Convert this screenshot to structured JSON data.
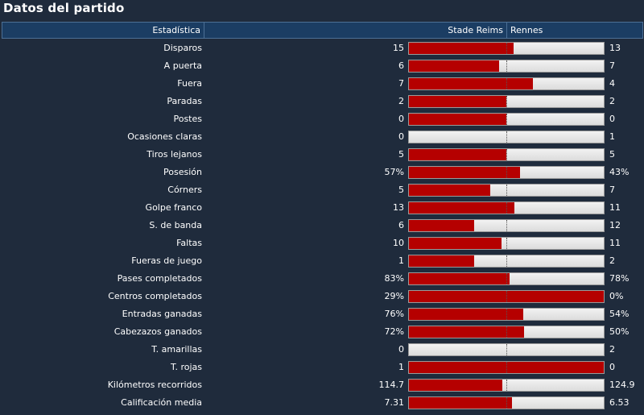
{
  "title": "Datos del partido",
  "header": {
    "stat_label": "Estadística",
    "home_team": "Stade Reims",
    "away_team": "Rennes"
  },
  "colors": {
    "home_fill": "#b50000",
    "away_fill": "#e6e6e6",
    "header_bg": "#1b3d63",
    "page_bg": "#1f2b3c"
  },
  "stats": [
    {
      "label": "Disparos",
      "home": "15",
      "away": "13",
      "home_share": 0.536
    },
    {
      "label": "A puerta",
      "home": "6",
      "away": "7",
      "home_share": 0.462
    },
    {
      "label": "Fuera",
      "home": "7",
      "away": "4",
      "home_share": 0.636
    },
    {
      "label": "Paradas",
      "home": "2",
      "away": "2",
      "home_share": 0.5
    },
    {
      "label": "Postes",
      "home": "0",
      "away": "0",
      "home_share": 0.5
    },
    {
      "label": "Ocasiones claras",
      "home": "0",
      "away": "1",
      "home_share": 0
    },
    {
      "label": "Tiros lejanos",
      "home": "5",
      "away": "5",
      "home_share": 0.5
    },
    {
      "label": "Posesión",
      "home": "57%",
      "away": "43%",
      "home_share": 0.57
    },
    {
      "label": "Córners",
      "home": "5",
      "away": "7",
      "home_share": 0.417
    },
    {
      "label": "Golpe franco",
      "home": "13",
      "away": "11",
      "home_share": 0.542
    },
    {
      "label": "S. de banda",
      "home": "6",
      "away": "12",
      "home_share": 0.333
    },
    {
      "label": "Faltas",
      "home": "10",
      "away": "11",
      "home_share": 0.476
    },
    {
      "label": "Fueras de juego",
      "home": "1",
      "away": "2",
      "home_share": 0.333
    },
    {
      "label": "Pases completados",
      "home": "83%",
      "away": "78%",
      "home_share": 0.516
    },
    {
      "label": "Centros completados",
      "home": "29%",
      "away": "0%",
      "home_share": 1
    },
    {
      "label": "Entradas ganadas",
      "home": "76%",
      "away": "54%",
      "home_share": 0.585
    },
    {
      "label": "Cabezazos ganados",
      "home": "72%",
      "away": "50%",
      "home_share": 0.59
    },
    {
      "label": "T. amarillas",
      "home": "0",
      "away": "2",
      "home_share": 0
    },
    {
      "label": "T. rojas",
      "home": "1",
      "away": "0",
      "home_share": 1
    },
    {
      "label": "Kilómetros recorridos",
      "home": "114.7",
      "away": "124.9",
      "home_share": 0.479
    },
    {
      "label": "Calificación media",
      "home": "7.31",
      "away": "6.53",
      "home_share": 0.528
    }
  ]
}
